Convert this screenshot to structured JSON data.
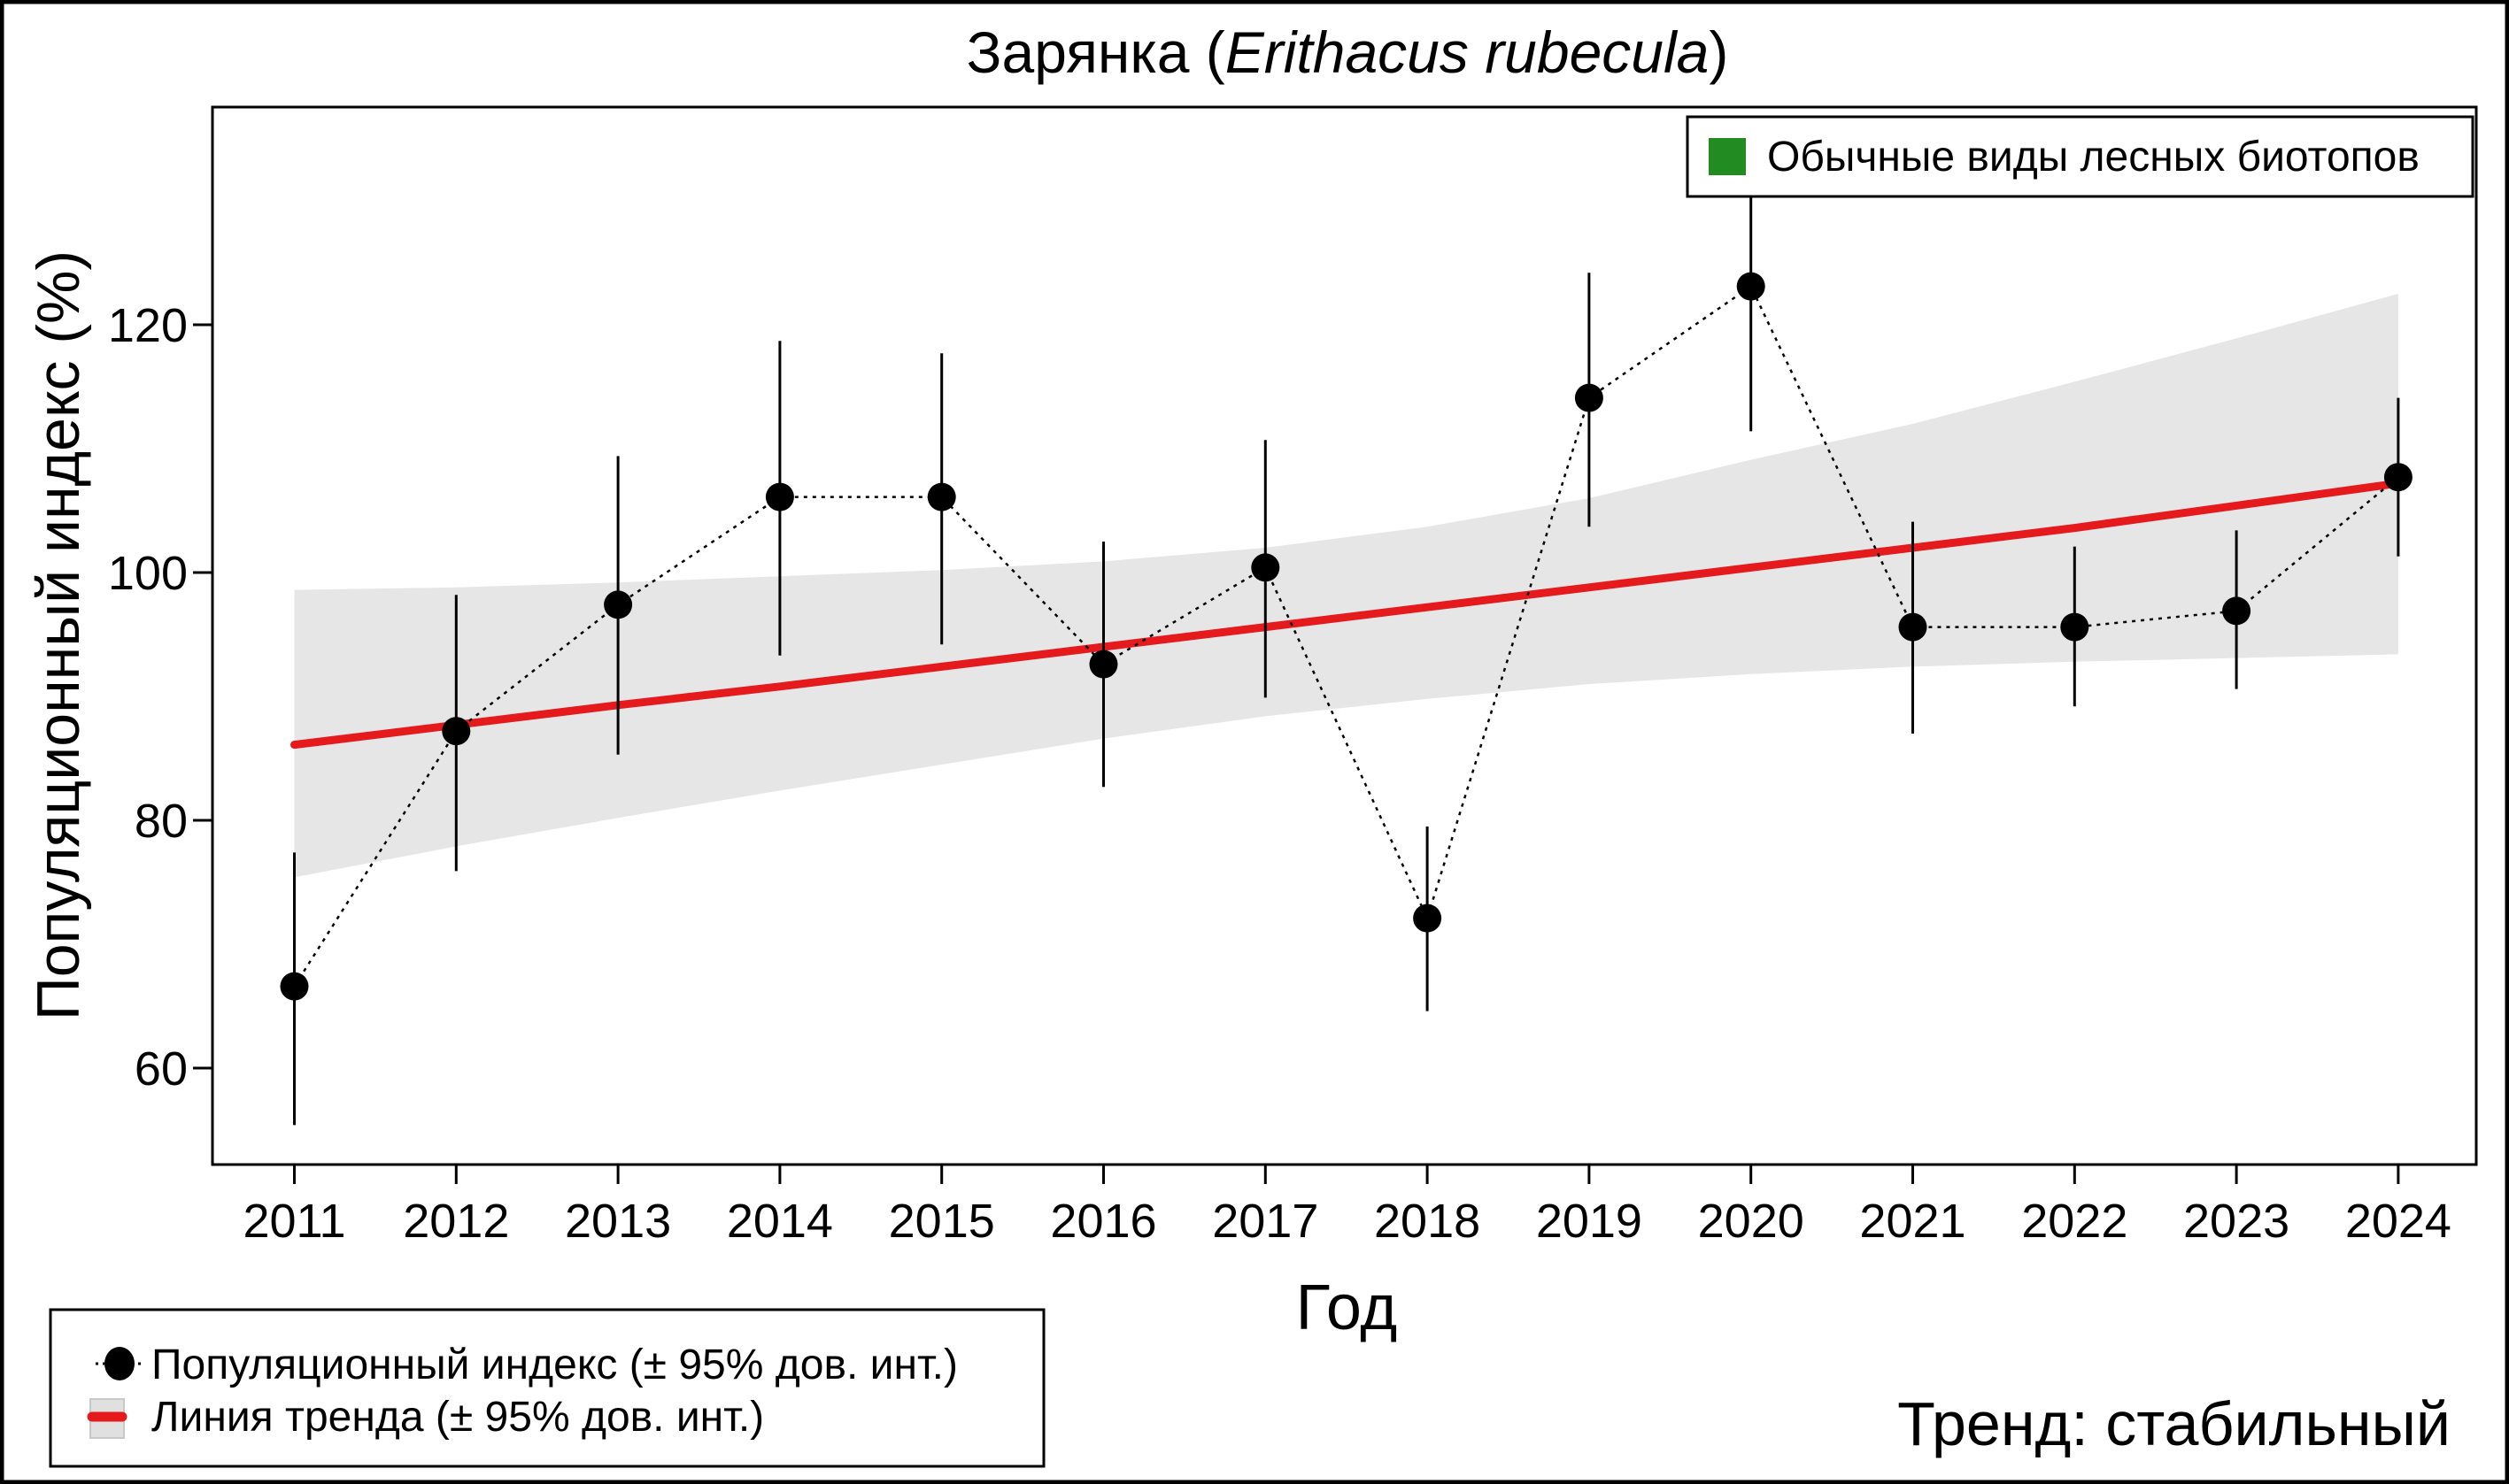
{
  "chart_data": {
    "type": "line",
    "title": "Зарянка",
    "title_latin": "Erithacus rubecula",
    "xlabel": "Год",
    "ylabel": "Популяционный индекс (%)",
    "ylim": [
      52.5,
      138
    ],
    "yticks": [
      60,
      80,
      100,
      120
    ],
    "x": [
      2011,
      2012,
      2013,
      2014,
      2015,
      2016,
      2017,
      2018,
      2019,
      2020,
      2021,
      2022,
      2023,
      2024
    ],
    "xtick_labels": [
      "2011",
      "2012",
      "2013",
      "2014",
      "2015",
      "2016",
      "2017",
      "2018",
      "2019",
      "2020",
      "2021",
      "2022",
      "2023",
      "2024"
    ],
    "grid": false,
    "series": [
      {
        "name": "Популяционный индекс (± 95% дов. инт.)",
        "style": "dotted line with filled circles",
        "color": "#000000",
        "values": [
          66.6,
          87.2,
          97.4,
          106.1,
          106.1,
          92.6,
          100.4,
          72.1,
          114.1,
          123.1,
          95.6,
          95.6,
          96.9,
          107.7
        ],
        "ci_lower": [
          55.4,
          75.9,
          85.3,
          93.3,
          94.2,
          82.7,
          89.9,
          64.6,
          103.7,
          111.4,
          87.0,
          89.2,
          90.6,
          101.3
        ],
        "ci_upper": [
          77.4,
          98.2,
          109.4,
          118.7,
          117.7,
          102.5,
          110.7,
          79.5,
          124.2,
          131.5,
          104.1,
          102.1,
          103.4,
          114.1
        ]
      },
      {
        "name": "Линия тренда (± 95% дов. инт.)",
        "style": "solid line with shaded band",
        "color": "#e41a1c",
        "band_color": "#e6e6e6",
        "values": [
          86.1,
          87.7,
          89.3,
          90.8,
          92.4,
          94.0,
          95.6,
          97.2,
          98.8,
          100.4,
          102.0,
          103.6,
          105.4,
          107.2
        ],
        "band_lower": [
          75.4,
          77.9,
          80.2,
          82.4,
          84.5,
          86.6,
          88.4,
          89.8,
          91.0,
          91.8,
          92.4,
          92.8,
          93.1,
          93.4
        ],
        "band_upper": [
          98.6,
          98.8,
          99.2,
          99.7,
          100.2,
          100.9,
          102.0,
          103.7,
          106.0,
          109.1,
          112.0,
          115.4,
          118.9,
          122.5
        ]
      }
    ],
    "legend_top": {
      "placement": "top-right",
      "label": "Обычные виды лесных биотопов",
      "color": "#228b22"
    },
    "legend_bottom": {
      "placement": "bottom-left",
      "items": [
        {
          "label": "Популяционный индекс (± 95% дов. инт.)",
          "symbol": "point"
        },
        {
          "label": "Линия тренда (± 95% дов. инт.)",
          "symbol": "trend"
        }
      ]
    },
    "annotation": {
      "text": "Тренд: стабильный",
      "color": "#00008b",
      "placement": "bottom-right"
    }
  }
}
